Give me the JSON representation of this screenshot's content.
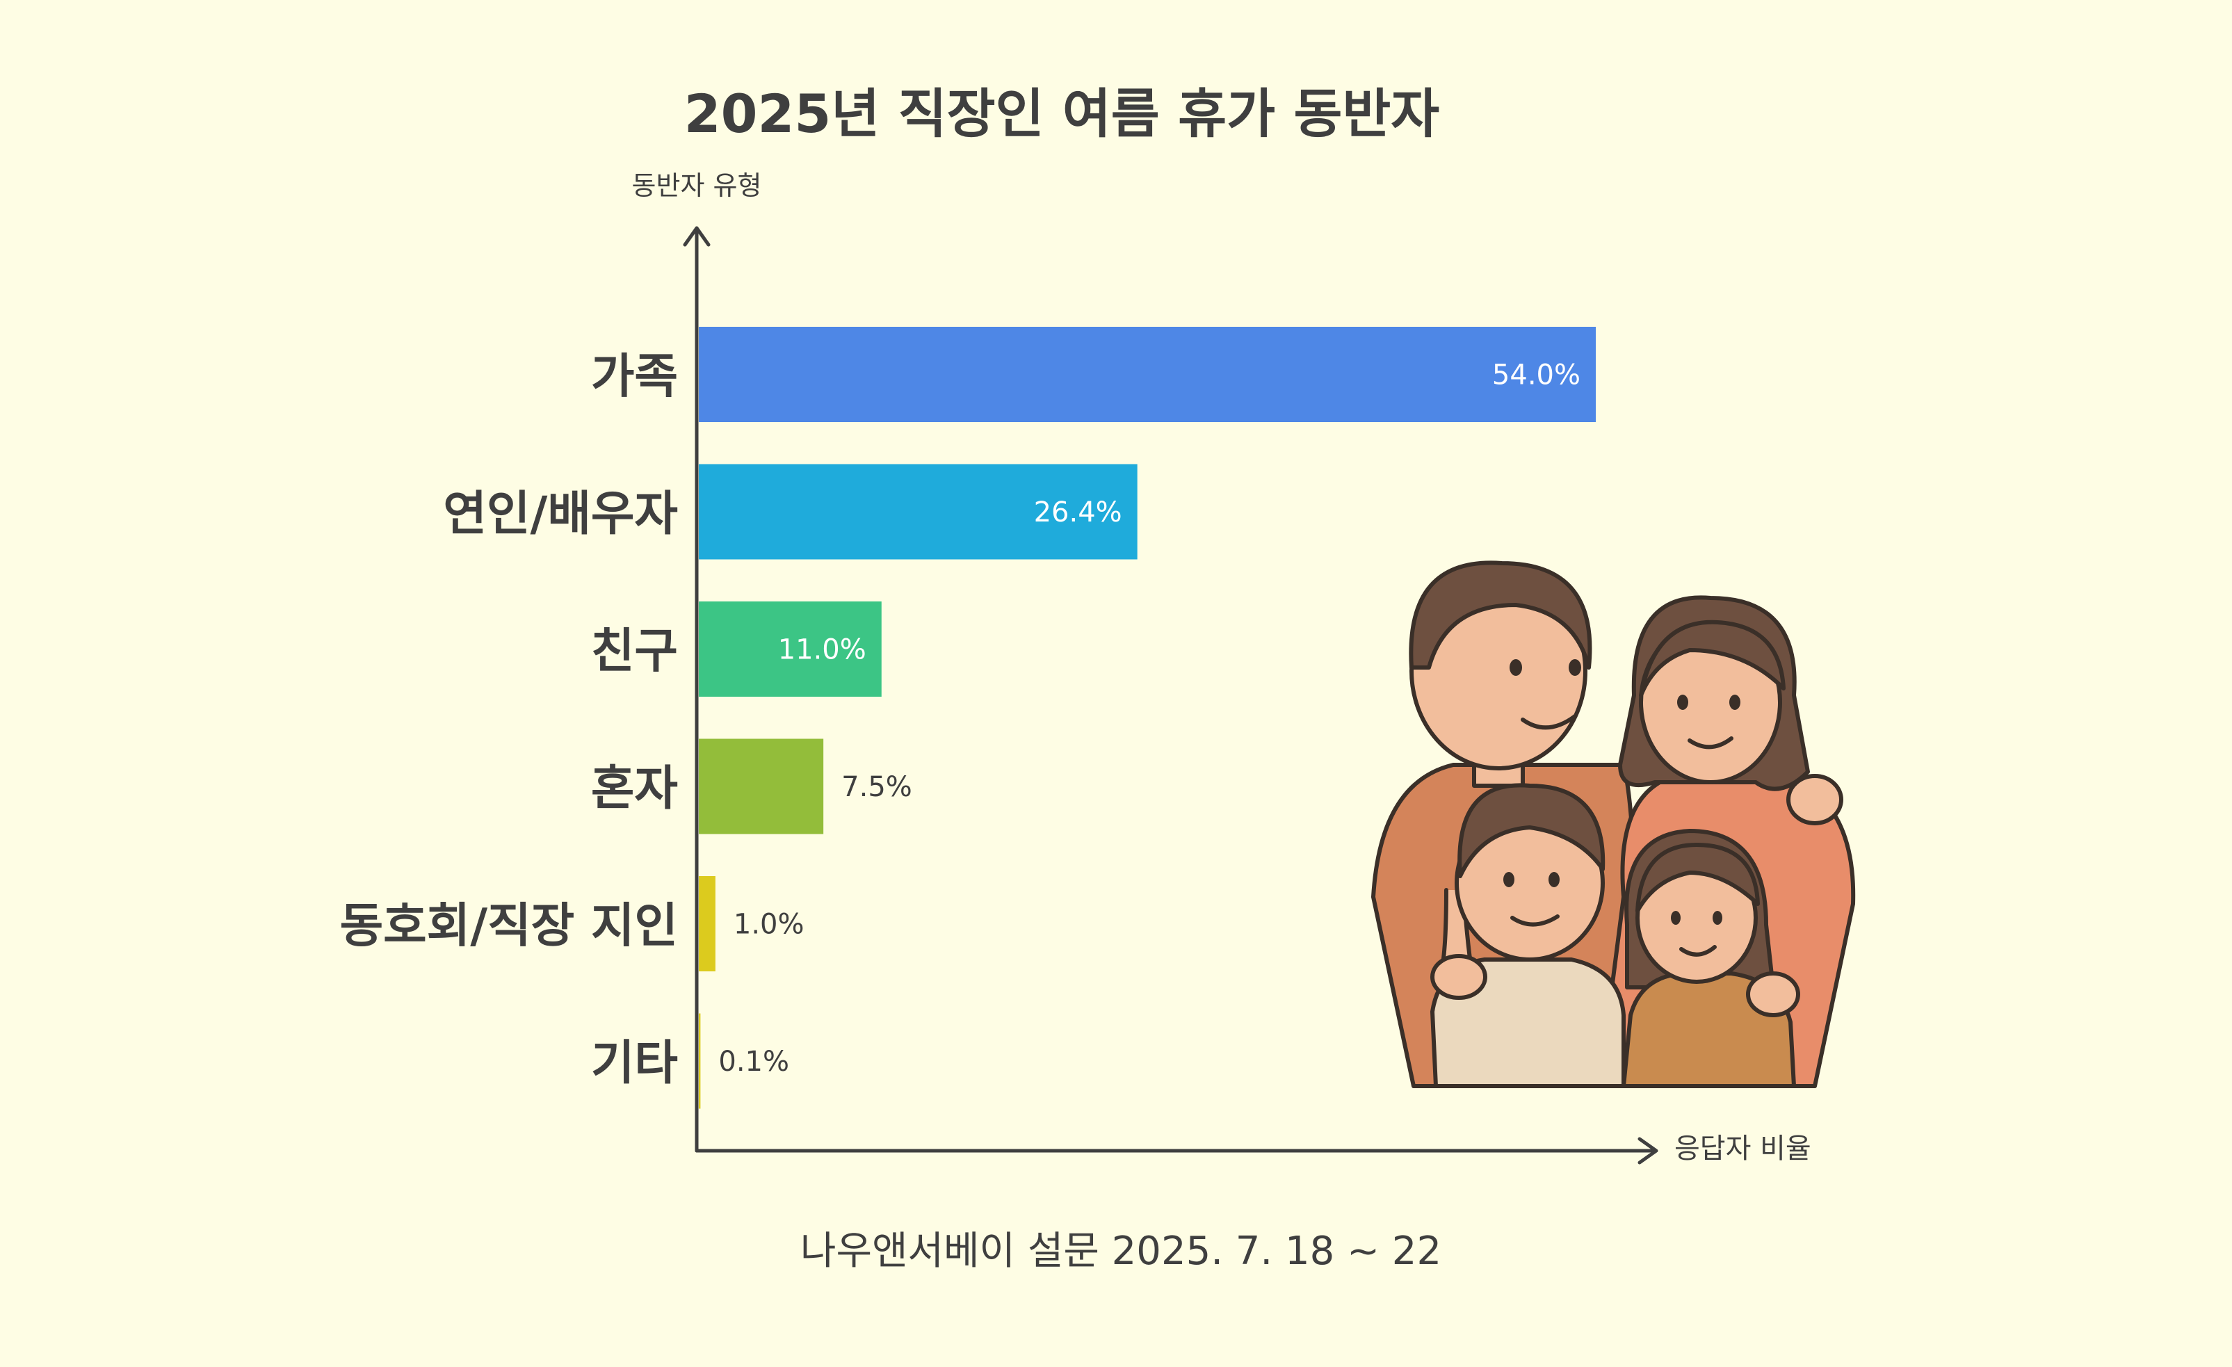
{
  "chart_data": {
    "type": "bar",
    "orientation": "horizontal",
    "title": "2025년 직장인 여름 휴가 동반자",
    "ylabel": "동반자 유형",
    "xlabel": "응답자 비율",
    "categories": [
      "가족",
      "연인/배우자",
      "친구",
      "혼자",
      "동호회/직장 지인",
      "기타"
    ],
    "values": [
      54.0,
      26.4,
      11.0,
      7.5,
      1.0,
      0.1
    ],
    "value_labels": [
      "54.0%",
      "26.4%",
      "11.0%",
      "7.5%",
      "1.0%",
      "0.1%"
    ],
    "colors": [
      "#4E87E6",
      "#1FABDB",
      "#3CC585",
      "#93BD3A",
      "#DCCB1E",
      "#DCCB1E"
    ],
    "xlim": [
      0,
      54.0
    ],
    "grid": false,
    "legend": "none",
    "source": "나우앤서베이 설문 2025. 7. 18 ~ 22"
  },
  "illustration": {
    "icon": "family-illustration-icon"
  },
  "colors": {
    "background": "#FEFDE4",
    "text": "#3F3F3F"
  }
}
